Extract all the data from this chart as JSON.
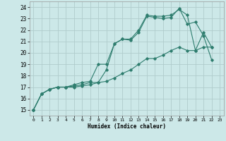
{
  "xlabel": "Humidex (Indice chaleur)",
  "bg_color": "#cce8e8",
  "line_color": "#2e7d6e",
  "grid_color": "#b0cccc",
  "xlim": [
    -0.5,
    23.5
  ],
  "ylim": [
    14.5,
    24.5
  ],
  "yticks": [
    15,
    16,
    17,
    18,
    19,
    20,
    21,
    22,
    23,
    24
  ],
  "xticks": [
    0,
    1,
    2,
    3,
    4,
    5,
    6,
    7,
    8,
    9,
    10,
    11,
    12,
    13,
    14,
    15,
    16,
    17,
    18,
    19,
    20,
    21,
    22,
    23
  ],
  "line1_x": [
    0,
    1,
    2,
    3,
    4,
    5,
    6,
    7,
    8,
    9,
    10,
    11,
    12,
    13,
    14,
    15,
    16,
    17,
    18,
    19,
    20,
    21,
    22
  ],
  "line1_y": [
    15.0,
    16.4,
    16.8,
    17.0,
    17.0,
    17.0,
    17.1,
    17.2,
    17.4,
    18.5,
    20.8,
    21.2,
    21.2,
    22.0,
    23.3,
    23.2,
    23.2,
    23.3,
    23.8,
    23.3,
    20.2,
    21.8,
    20.5
  ],
  "line2_x": [
    0,
    1,
    2,
    3,
    4,
    5,
    6,
    7,
    8,
    9,
    10,
    11,
    12,
    13,
    14,
    15,
    16,
    17,
    18,
    19,
    20,
    21,
    22
  ],
  "line2_y": [
    15.0,
    16.4,
    16.8,
    17.0,
    17.0,
    17.2,
    17.4,
    17.5,
    19.0,
    19.0,
    20.8,
    21.2,
    21.1,
    21.8,
    23.2,
    23.1,
    23.0,
    23.1,
    23.9,
    22.5,
    22.7,
    21.5,
    19.4
  ],
  "line3_x": [
    0,
    1,
    2,
    3,
    4,
    5,
    6,
    7,
    8,
    9,
    10,
    11,
    12,
    13,
    14,
    15,
    16,
    17,
    18,
    19,
    20,
    21,
    22
  ],
  "line3_y": [
    15.0,
    16.4,
    16.8,
    17.0,
    17.0,
    17.1,
    17.2,
    17.4,
    17.4,
    17.5,
    17.8,
    18.2,
    18.5,
    19.0,
    19.5,
    19.5,
    19.8,
    20.2,
    20.5,
    20.2,
    20.2,
    20.5,
    20.5
  ]
}
